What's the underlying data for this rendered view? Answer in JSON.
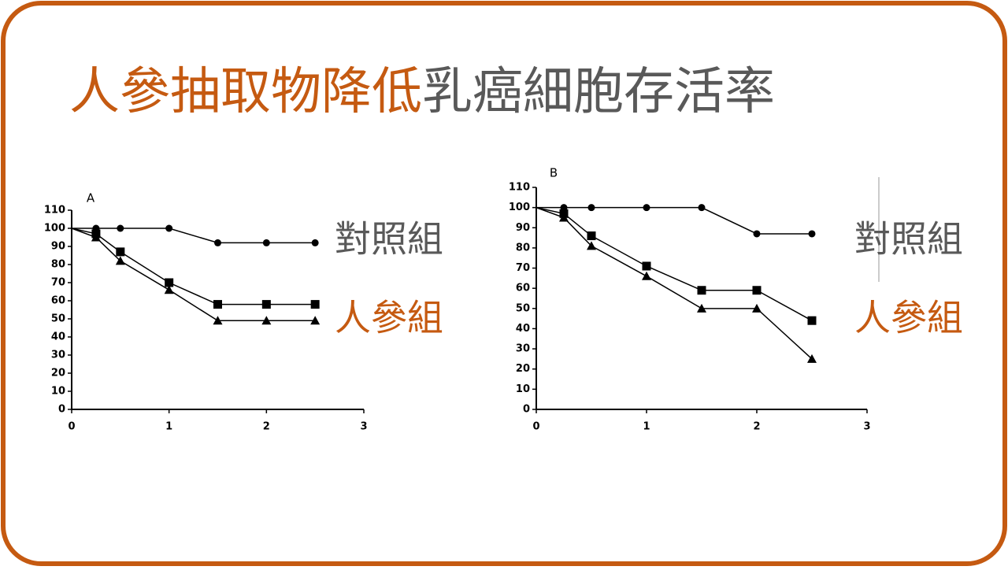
{
  "slide": {
    "title_parts": [
      {
        "text": "人參抽取物降低",
        "color": "#c55a11"
      },
      {
        "text": "乳癌細胞存活率",
        "color": "#595959"
      }
    ]
  },
  "chart_data": [
    {
      "type": "line",
      "panel_label": "A",
      "x": [
        0,
        0.25,
        0.5,
        1,
        1.5,
        2,
        2.5
      ],
      "xlim": [
        0,
        3
      ],
      "xticks": [
        0,
        1,
        2,
        3
      ],
      "ylim": [
        0,
        110
      ],
      "yticks": [
        0,
        10,
        20,
        30,
        40,
        50,
        60,
        70,
        80,
        90,
        100,
        110
      ],
      "series": [
        {
          "marker": "circle",
          "color": "#000000",
          "values": [
            100,
            100,
            100,
            100,
            92,
            92,
            92
          ]
        },
        {
          "marker": "square",
          "color": "#000000",
          "values": [
            100,
            97,
            87,
            70,
            58,
            58,
            58
          ]
        },
        {
          "marker": "triangle",
          "color": "#000000",
          "values": [
            100,
            95,
            82,
            66,
            49,
            49,
            49
          ]
        }
      ],
      "annotations": [
        {
          "text": "對照組",
          "color": "#595959"
        },
        {
          "text": "人參組",
          "color": "#c55a11"
        }
      ]
    },
    {
      "type": "line",
      "panel_label": "B",
      "x": [
        0,
        0.25,
        0.5,
        1,
        1.5,
        2,
        2.5
      ],
      "xlim": [
        0,
        3
      ],
      "xticks": [
        0,
        1,
        2,
        3
      ],
      "ylim": [
        0,
        110
      ],
      "yticks": [
        0,
        10,
        20,
        30,
        40,
        50,
        60,
        70,
        80,
        90,
        100,
        110
      ],
      "series": [
        {
          "marker": "circle",
          "color": "#000000",
          "values": [
            100,
            100,
            100,
            100,
            100,
            87,
            87
          ]
        },
        {
          "marker": "square",
          "color": "#000000",
          "values": [
            100,
            97,
            86,
            71,
            59,
            59,
            44
          ]
        },
        {
          "marker": "triangle",
          "color": "#000000",
          "values": [
            100,
            95,
            81,
            66,
            50,
            50,
            25
          ]
        }
      ],
      "annotations": [
        {
          "text": "對照組",
          "color": "#595959"
        },
        {
          "text": "人參組",
          "color": "#c55a11"
        }
      ]
    }
  ]
}
